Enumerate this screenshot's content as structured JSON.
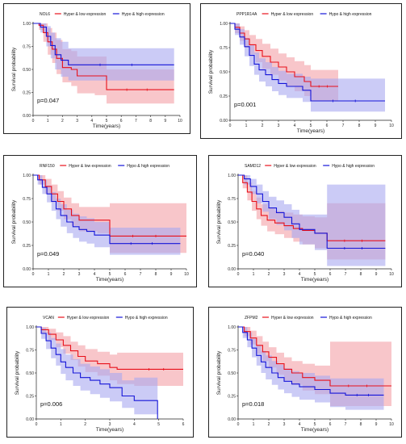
{
  "legend_red": "Hyper & low expression",
  "legend_blue": "Hypo & high expression",
  "colors": {
    "red": "#e8101a",
    "blue": "#1414d8",
    "red_band": "#f4a0a6",
    "blue_band": "#a8a8f0"
  },
  "chart_data": [
    {
      "type": "line",
      "gene": "NOL6",
      "xlabel": "Time(years)",
      "ylabel": "Survival probability",
      "xlim": [
        0,
        10
      ],
      "ylim": [
        0,
        1
      ],
      "xticks": [
        "0",
        "1",
        "2",
        "3",
        "4",
        "5",
        "6",
        "7",
        "8",
        "9",
        "10"
      ],
      "yticks": [
        "0.00",
        "0.25",
        "0.50",
        "0.75",
        "1.00"
      ],
      "p_value": "p=0.047",
      "series": [
        {
          "name": "Hyper & low expression",
          "color": "red",
          "x": [
            0,
            0.4,
            0.7,
            1.0,
            1.3,
            1.6,
            2.0,
            2.6,
            3.0,
            4.2,
            5.0,
            9.6
          ],
          "y": [
            1.0,
            0.98,
            0.9,
            0.8,
            0.72,
            0.62,
            0.52,
            0.5,
            0.43,
            0.43,
            0.28,
            0.28
          ],
          "lower": [
            1.0,
            0.93,
            0.8,
            0.66,
            0.57,
            0.45,
            0.36,
            0.32,
            0.24,
            0.22,
            0.13,
            0.13
          ],
          "upper": [
            1.0,
            1.0,
            1.0,
            0.95,
            0.9,
            0.82,
            0.72,
            0.7,
            0.64,
            0.64,
            0.5,
            0.5
          ]
        },
        {
          "name": "Hypo & high expression",
          "color": "blue",
          "x": [
            0,
            0.5,
            0.9,
            1.2,
            1.5,
            1.9,
            2.4,
            9.6
          ],
          "y": [
            1.0,
            0.96,
            0.86,
            0.76,
            0.66,
            0.6,
            0.55,
            0.55
          ],
          "lower": [
            1.0,
            0.9,
            0.75,
            0.62,
            0.5,
            0.42,
            0.38,
            0.38
          ],
          "upper": [
            1.0,
            1.0,
            0.97,
            0.9,
            0.84,
            0.8,
            0.73,
            0.73
          ]
        }
      ]
    },
    {
      "type": "line",
      "gene": "PPP1R14A",
      "xlabel": "Time(years)",
      "ylabel": "Survival probability",
      "xlim": [
        0,
        10
      ],
      "ylim": [
        0,
        1
      ],
      "xticks": [
        "0",
        "1",
        "2",
        "3",
        "4",
        "5",
        "6",
        "7",
        "8",
        "9",
        "10"
      ],
      "yticks": [
        "0.00",
        "0.25",
        "0.50",
        "0.75",
        "1.00"
      ],
      "p_value": "p=0.001",
      "series": [
        {
          "name": "Hyper & low expression",
          "color": "red",
          "x": [
            0,
            0.3,
            0.6,
            0.9,
            1.2,
            1.6,
            2.0,
            2.5,
            3.0,
            3.5,
            4.0,
            4.6,
            5.0,
            6.7
          ],
          "y": [
            1.0,
            0.96,
            0.9,
            0.84,
            0.78,
            0.72,
            0.66,
            0.6,
            0.55,
            0.5,
            0.45,
            0.4,
            0.35,
            0.35
          ],
          "lower": [
            1.0,
            0.9,
            0.82,
            0.75,
            0.68,
            0.6,
            0.53,
            0.47,
            0.41,
            0.35,
            0.3,
            0.25,
            0.2,
            0.2
          ],
          "upper": [
            1.0,
            1.0,
            0.97,
            0.93,
            0.88,
            0.84,
            0.79,
            0.74,
            0.69,
            0.65,
            0.61,
            0.57,
            0.52,
            0.52
          ]
        },
        {
          "name": "Hypo & high expression",
          "color": "blue",
          "x": [
            0,
            0.3,
            0.6,
            0.9,
            1.2,
            1.5,
            1.8,
            2.2,
            2.6,
            3.0,
            3.5,
            4.5,
            5.0,
            9.6
          ],
          "y": [
            1.0,
            0.94,
            0.86,
            0.76,
            0.67,
            0.58,
            0.52,
            0.47,
            0.42,
            0.38,
            0.35,
            0.31,
            0.2,
            0.2
          ],
          "lower": [
            1.0,
            0.88,
            0.78,
            0.66,
            0.56,
            0.47,
            0.4,
            0.35,
            0.3,
            0.26,
            0.23,
            0.19,
            0.09,
            0.09
          ],
          "upper": [
            1.0,
            1.0,
            0.94,
            0.85,
            0.78,
            0.7,
            0.64,
            0.6,
            0.55,
            0.51,
            0.48,
            0.45,
            0.43,
            0.43
          ]
        }
      ]
    },
    {
      "type": "line",
      "gene": "RNF150",
      "xlabel": "Time(years)",
      "ylabel": "Survival probability",
      "xlim": [
        0,
        10
      ],
      "ylim": [
        0,
        1
      ],
      "xticks": [
        "0",
        "1",
        "2",
        "3",
        "4",
        "5",
        "6",
        "7",
        "8",
        "9",
        "10"
      ],
      "yticks": [
        "0.00",
        "0.25",
        "0.50",
        "0.75",
        "1.00"
      ],
      "p_value": "p=0.049",
      "series": [
        {
          "name": "Hyper & low expression",
          "color": "red",
          "x": [
            0,
            0.4,
            0.8,
            1.2,
            1.6,
            2.0,
            2.5,
            3.0,
            4.2,
            5.0,
            10.0
          ],
          "y": [
            1.0,
            0.95,
            0.88,
            0.8,
            0.72,
            0.64,
            0.57,
            0.52,
            0.52,
            0.35,
            0.35
          ],
          "lower": [
            1.0,
            0.9,
            0.8,
            0.71,
            0.62,
            0.53,
            0.46,
            0.4,
            0.38,
            0.17,
            0.17
          ],
          "upper": [
            1.0,
            1.0,
            0.96,
            0.9,
            0.83,
            0.76,
            0.7,
            0.66,
            0.66,
            0.7,
            0.7
          ]
        },
        {
          "name": "Hypo & high expression",
          "color": "blue",
          "x": [
            0,
            0.3,
            0.6,
            0.9,
            1.2,
            1.5,
            1.8,
            2.2,
            2.6,
            3.0,
            3.5,
            4.0,
            5.0,
            9.6
          ],
          "y": [
            1.0,
            0.95,
            0.87,
            0.8,
            0.72,
            0.64,
            0.57,
            0.5,
            0.45,
            0.42,
            0.4,
            0.36,
            0.27,
            0.27
          ],
          "lower": [
            1.0,
            0.9,
            0.8,
            0.71,
            0.62,
            0.53,
            0.45,
            0.38,
            0.33,
            0.29,
            0.27,
            0.23,
            0.15,
            0.15
          ],
          "upper": [
            1.0,
            1.0,
            0.95,
            0.89,
            0.82,
            0.75,
            0.69,
            0.63,
            0.59,
            0.56,
            0.54,
            0.5,
            0.44,
            0.44
          ]
        }
      ]
    },
    {
      "type": "line",
      "gene": "SAMD12",
      "xlabel": "Time(years)",
      "ylabel": "Survival probability",
      "xlim": [
        0,
        10
      ],
      "ylim": [
        0,
        1
      ],
      "xticks": [
        "0",
        "1",
        "2",
        "3",
        "4",
        "5",
        "6",
        "7",
        "8",
        "9",
        "10"
      ],
      "yticks": [
        "0.00",
        "0.25",
        "0.50",
        "0.75",
        "1.00"
      ],
      "p_value": "p=0.040",
      "series": [
        {
          "name": "Hyper & low expression",
          "color": "red",
          "x": [
            0,
            0.3,
            0.6,
            0.9,
            1.2,
            1.5,
            1.9,
            2.4,
            3.0,
            3.6,
            4.2,
            5.0,
            5.8,
            9.6
          ],
          "y": [
            1.0,
            0.92,
            0.82,
            0.72,
            0.64,
            0.57,
            0.52,
            0.49,
            0.46,
            0.43,
            0.41,
            0.38,
            0.3,
            0.3
          ],
          "lower": [
            1.0,
            0.86,
            0.73,
            0.62,
            0.53,
            0.46,
            0.4,
            0.37,
            0.33,
            0.29,
            0.26,
            0.22,
            0.1,
            0.1
          ],
          "upper": [
            1.0,
            1.0,
            0.92,
            0.83,
            0.76,
            0.69,
            0.65,
            0.62,
            0.6,
            0.58,
            0.56,
            0.55,
            0.7,
            0.7
          ]
        },
        {
          "name": "Hypo & high expression",
          "color": "blue",
          "x": [
            0,
            0.4,
            0.8,
            1.2,
            1.6,
            2.0,
            2.5,
            3.0,
            3.5,
            4.0,
            5.0,
            5.8,
            9.6
          ],
          "y": [
            1.0,
            0.96,
            0.88,
            0.8,
            0.72,
            0.65,
            0.6,
            0.55,
            0.48,
            0.42,
            0.38,
            0.22,
            0.22
          ],
          "lower": [
            1.0,
            0.9,
            0.8,
            0.7,
            0.61,
            0.53,
            0.47,
            0.41,
            0.33,
            0.26,
            0.2,
            0.03,
            0.03
          ],
          "upper": [
            1.0,
            1.0,
            0.96,
            0.9,
            0.83,
            0.77,
            0.73,
            0.69,
            0.63,
            0.58,
            0.58,
            0.9,
            0.9
          ]
        }
      ]
    },
    {
      "type": "line",
      "gene": "VCAN",
      "xlabel": "Time(years)",
      "ylabel": "Survival probability",
      "xlim": [
        0,
        6
      ],
      "ylim": [
        0,
        1
      ],
      "xticks": [
        "0",
        "1",
        "2",
        "3",
        "4",
        "5",
        "6"
      ],
      "yticks": [
        "0.00",
        "0.25",
        "0.50",
        "0.75",
        "1.00"
      ],
      "p_value": "p=0.006",
      "series": [
        {
          "name": "Hyper & low expression",
          "color": "red",
          "x": [
            0,
            0.2,
            0.5,
            0.8,
            1.1,
            1.4,
            1.7,
            2.0,
            2.5,
            3.0,
            3.3,
            4.0,
            6.0
          ],
          "y": [
            1.0,
            0.97,
            0.92,
            0.86,
            0.8,
            0.74,
            0.68,
            0.63,
            0.6,
            0.56,
            0.54,
            0.54,
            0.54
          ],
          "lower": [
            1.0,
            0.93,
            0.86,
            0.78,
            0.71,
            0.64,
            0.57,
            0.51,
            0.47,
            0.42,
            0.38,
            0.36,
            0.36
          ],
          "upper": [
            1.0,
            1.0,
            0.98,
            0.94,
            0.9,
            0.84,
            0.8,
            0.76,
            0.73,
            0.7,
            0.72,
            0.72,
            0.72
          ]
        },
        {
          "name": "Hypo & high expression",
          "color": "blue",
          "x": [
            0,
            0.2,
            0.4,
            0.6,
            0.8,
            1.0,
            1.2,
            1.5,
            1.8,
            2.2,
            2.6,
            3.0,
            3.5,
            4.0,
            4.95
          ],
          "y": [
            1.0,
            0.93,
            0.85,
            0.77,
            0.7,
            0.62,
            0.56,
            0.5,
            0.45,
            0.42,
            0.38,
            0.34,
            0.25,
            0.2,
            0.0
          ],
          "lower": [
            1.0,
            0.87,
            0.76,
            0.66,
            0.58,
            0.49,
            0.42,
            0.36,
            0.31,
            0.27,
            0.23,
            0.19,
            0.12,
            0.05,
            0.0
          ],
          "upper": [
            1.0,
            0.99,
            0.94,
            0.88,
            0.82,
            0.76,
            0.7,
            0.65,
            0.6,
            0.57,
            0.54,
            0.5,
            0.42,
            0.45,
            0.45
          ]
        }
      ]
    },
    {
      "type": "line",
      "gene": "ZFPM2",
      "xlabel": "Time(years)",
      "ylabel": "Survival probability",
      "xlim": [
        0,
        10
      ],
      "ylim": [
        0,
        1
      ],
      "xticks": [
        "0",
        "1",
        "2",
        "3",
        "4",
        "5",
        "6",
        "7",
        "8",
        "9",
        "10"
      ],
      "yticks": [
        "0.00",
        "0.25",
        "0.50",
        "0.75",
        "1.00"
      ],
      "p_value": "p=0.018",
      "series": [
        {
          "name": "Hyper & low expression",
          "color": "red",
          "x": [
            0,
            0.4,
            0.8,
            1.2,
            1.6,
            2.0,
            2.5,
            3.0,
            3.5,
            4.2,
            5.0,
            6.0,
            10.0
          ],
          "y": [
            1.0,
            0.95,
            0.88,
            0.8,
            0.73,
            0.67,
            0.6,
            0.54,
            0.5,
            0.45,
            0.42,
            0.36,
            0.36
          ],
          "lower": [
            1.0,
            0.9,
            0.81,
            0.71,
            0.63,
            0.56,
            0.48,
            0.42,
            0.37,
            0.31,
            0.27,
            0.14,
            0.14
          ],
          "upper": [
            1.0,
            1.0,
            0.96,
            0.9,
            0.84,
            0.78,
            0.72,
            0.67,
            0.63,
            0.6,
            0.58,
            0.84,
            0.84
          ]
        },
        {
          "name": "Hypo & high expression",
          "color": "blue",
          "x": [
            0,
            0.3,
            0.6,
            0.9,
            1.2,
            1.5,
            1.8,
            2.2,
            2.6,
            3.0,
            3.5,
            4.0,
            5.0,
            6.0,
            7.0,
            9.5
          ],
          "y": [
            1.0,
            0.94,
            0.86,
            0.77,
            0.69,
            0.62,
            0.56,
            0.5,
            0.45,
            0.41,
            0.38,
            0.35,
            0.32,
            0.28,
            0.26,
            0.26
          ],
          "lower": [
            1.0,
            0.88,
            0.78,
            0.67,
            0.58,
            0.5,
            0.43,
            0.37,
            0.32,
            0.28,
            0.24,
            0.21,
            0.18,
            0.13,
            0.1,
            0.1
          ],
          "upper": [
            1.0,
            1.0,
            0.94,
            0.87,
            0.8,
            0.74,
            0.69,
            0.63,
            0.59,
            0.55,
            0.52,
            0.5,
            0.47,
            0.44,
            0.44,
            0.44
          ]
        }
      ]
    }
  ]
}
